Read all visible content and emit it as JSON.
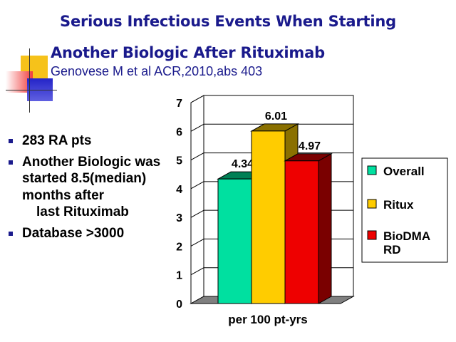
{
  "slide": {
    "title_line1": "Serious Infectious Events When Starting",
    "title_line2": "Another Biologic  After Rituximab",
    "subtitle": "Genovese M et al ACR,2010,abs 403"
  },
  "bullets": [
    {
      "text": "283 RA pts",
      "marker": true
    },
    {
      "text": "Another Biologic was started 8.5(median) months after",
      "marker": true
    },
    {
      "text": "last Rituximab",
      "marker": false
    },
    {
      "text": "Database >3000",
      "marker": true
    }
  ],
  "colors": {
    "title": "#1a1a8c",
    "deco_yellow": "#f6c21a",
    "deco_red": "#f03c3c",
    "deco_blue": "#2424c8"
  },
  "chart_data": {
    "type": "bar",
    "categories": [
      "per 100 pt-yrs"
    ],
    "series": [
      {
        "name": "Overall",
        "values": [
          4.34
        ],
        "color": "#00e0a0",
        "side_color": "#008055",
        "label": "4.34"
      },
      {
        "name": "Ritux",
        "values": [
          6.01
        ],
        "color": "#ffcc00",
        "side_color": "#8a7000",
        "label": "6.01"
      },
      {
        "name": "BioDMARD",
        "values": [
          4.97
        ],
        "color": "#ee0000",
        "side_color": "#7a0000",
        "label": "4.97"
      }
    ],
    "legend": [
      {
        "text": "Overall",
        "color": "#00e0a0"
      },
      {
        "text": "Ritux",
        "color": "#ffcc00"
      },
      {
        "text": "BioDMA\nRD",
        "color": "#ee0000"
      }
    ],
    "y_ticks": [
      "0",
      "1",
      "2",
      "3",
      "4",
      "5",
      "6",
      "7"
    ],
    "ylim": [
      0,
      7
    ],
    "grid": true,
    "legend_position": "right",
    "title": "",
    "xlabel": "",
    "ylabel": ""
  }
}
